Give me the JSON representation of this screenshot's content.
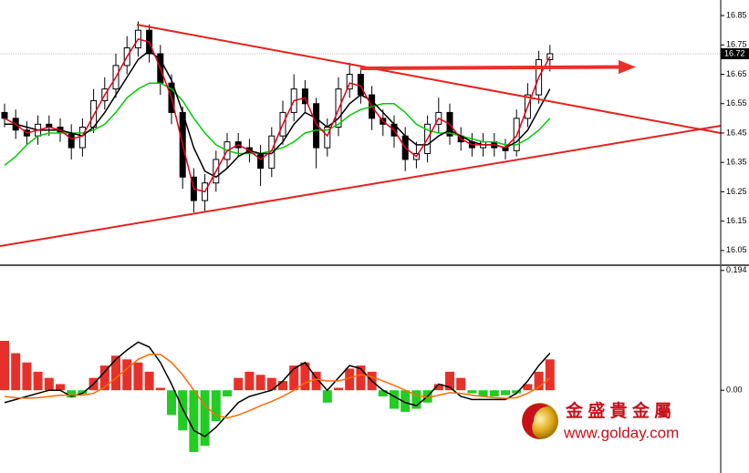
{
  "chart_data": [
    {
      "type": "candlestick",
      "open": [
        16.52,
        16.5,
        16.46,
        16.44,
        16.48,
        16.47,
        16.45,
        16.4,
        16.47,
        16.56,
        16.6,
        16.68,
        16.74,
        16.8,
        16.72,
        16.62,
        16.52,
        16.3,
        16.22,
        16.28,
        16.36,
        16.42,
        16.4,
        16.38,
        16.33,
        16.44,
        16.52,
        16.6,
        16.55,
        16.4,
        16.47,
        16.6,
        16.65,
        16.58,
        16.5,
        16.48,
        16.44,
        16.36,
        16.38,
        16.48,
        16.52,
        16.44,
        16.42,
        16.4,
        16.42,
        16.4,
        16.39,
        16.5,
        16.58,
        16.7
      ],
      "high": [
        16.55,
        16.53,
        16.49,
        16.51,
        16.51,
        16.5,
        16.48,
        16.5,
        16.6,
        16.64,
        16.72,
        16.78,
        16.83,
        16.82,
        16.75,
        16.65,
        16.54,
        16.33,
        16.31,
        16.39,
        16.45,
        16.45,
        16.43,
        16.41,
        16.47,
        16.56,
        16.65,
        16.63,
        16.57,
        16.5,
        16.64,
        16.69,
        16.68,
        16.61,
        16.53,
        16.51,
        16.47,
        16.42,
        16.51,
        16.57,
        16.55,
        16.47,
        16.45,
        16.45,
        16.45,
        16.43,
        16.53,
        16.62,
        16.73,
        16.75
      ],
      "low": [
        16.47,
        16.43,
        16.41,
        16.41,
        16.44,
        16.42,
        16.36,
        16.37,
        16.45,
        16.53,
        16.57,
        16.65,
        16.71,
        16.69,
        16.58,
        16.48,
        16.26,
        16.18,
        16.18,
        16.25,
        16.33,
        16.37,
        16.35,
        16.27,
        16.3,
        16.41,
        16.49,
        16.52,
        16.33,
        16.37,
        16.44,
        16.57,
        16.55,
        16.46,
        16.44,
        16.4,
        16.32,
        16.33,
        16.35,
        16.45,
        16.41,
        16.39,
        16.37,
        16.37,
        16.37,
        16.36,
        16.37,
        16.47,
        16.55,
        16.66
      ],
      "close": [
        16.5,
        16.46,
        16.44,
        16.48,
        16.47,
        16.45,
        16.4,
        16.47,
        16.56,
        16.6,
        16.68,
        16.74,
        16.8,
        16.72,
        16.62,
        16.52,
        16.3,
        16.22,
        16.28,
        16.36,
        16.42,
        16.4,
        16.38,
        16.33,
        16.44,
        16.52,
        16.6,
        16.55,
        16.4,
        16.47,
        16.6,
        16.65,
        16.58,
        16.5,
        16.48,
        16.44,
        16.36,
        16.38,
        16.48,
        16.52,
        16.44,
        16.42,
        16.4,
        16.42,
        16.4,
        16.39,
        16.5,
        16.58,
        16.7,
        16.72
      ],
      "series": [
        {
          "color": "#00cc00",
          "values": [
            16.34,
            16.37,
            16.41,
            16.44,
            16.45,
            16.45,
            16.45,
            16.45,
            16.46,
            16.48,
            16.52,
            16.57,
            16.6,
            16.62,
            16.62,
            16.6,
            16.56,
            16.5,
            16.45,
            16.41,
            16.39,
            16.38,
            16.38,
            16.38,
            16.39,
            16.4,
            16.42,
            16.45,
            16.46,
            16.46,
            16.48,
            16.51,
            16.53,
            16.54,
            16.55,
            16.55,
            16.52,
            16.48,
            16.46,
            16.45,
            16.45,
            16.44,
            16.43,
            16.42,
            16.42,
            16.41,
            16.41,
            16.43,
            16.46,
            16.5
          ]
        },
        {
          "color": "#000000",
          "values": [
            16.48,
            16.48,
            16.47,
            16.46,
            16.46,
            16.46,
            16.45,
            16.44,
            16.47,
            16.52,
            16.58,
            16.64,
            16.7,
            16.73,
            16.7,
            16.63,
            16.52,
            16.4,
            16.32,
            16.3,
            16.33,
            16.37,
            16.39,
            16.38,
            16.38,
            16.42,
            16.48,
            16.52,
            16.5,
            16.47,
            16.5,
            16.55,
            16.58,
            16.56,
            16.52,
            16.48,
            16.44,
            16.41,
            16.41,
            16.44,
            16.46,
            16.44,
            16.42,
            16.41,
            16.41,
            16.4,
            16.42,
            16.46,
            16.53,
            16.6
          ]
        },
        {
          "color": "#e0001b",
          "values": [
            16.5,
            16.48,
            16.45,
            16.46,
            16.47,
            16.46,
            16.43,
            16.44,
            16.51,
            16.58,
            16.64,
            16.71,
            16.77,
            16.76,
            16.67,
            16.57,
            16.41,
            16.26,
            16.25,
            16.32,
            16.39,
            16.41,
            16.39,
            16.36,
            16.39,
            16.48,
            16.56,
            16.57,
            16.48,
            16.44,
            16.53,
            16.62,
            16.61,
            16.54,
            16.49,
            16.46,
            16.4,
            16.37,
            16.43,
            16.5,
            16.48,
            16.43,
            16.41,
            16.41,
            16.41,
            16.4,
            16.44,
            16.54,
            16.64,
            16.71
          ]
        }
      ],
      "ylim": [
        16.003,
        16.903
      ],
      "yticks": [
        16.85,
        16.75,
        16.65,
        16.55,
        16.45,
        16.35,
        16.25,
        16.15,
        16.05
      ]
    },
    {
      "type": "bar",
      "values": [
        0.08,
        0.06,
        0.045,
        0.03,
        0.02,
        0.01,
        -0.012,
        -0.006,
        0.02,
        0.04,
        0.056,
        0.05,
        0.045,
        0.03,
        0.004,
        -0.04,
        -0.065,
        -0.1,
        -0.09,
        -0.05,
        -0.01,
        0.02,
        0.03,
        0.025,
        0.02,
        0.015,
        0.04,
        0.045,
        0.03,
        -0.02,
        0.004,
        0.035,
        0.04,
        0.03,
        -0.01,
        -0.03,
        -0.035,
        -0.03,
        -0.02,
        0.01,
        0.03,
        0.02,
        -0.005,
        -0.01,
        -0.01,
        -0.008,
        -0.005,
        0.01,
        0.03,
        0.05
      ],
      "positive_color": "#e8302a",
      "negative_color": "#22cc22",
      "series": [
        {
          "color": "#000000",
          "values": [
            -0.02,
            -0.015,
            -0.01,
            -0.005,
            0.0,
            0.0,
            -0.01,
            -0.005,
            0.01,
            0.03,
            0.05,
            0.065,
            0.078,
            0.07,
            0.045,
            0.01,
            -0.03,
            -0.065,
            -0.075,
            -0.06,
            -0.04,
            -0.02,
            -0.01,
            -0.005,
            0.0,
            0.015,
            0.035,
            0.045,
            0.02,
            0.0,
            0.02,
            0.04,
            0.035,
            0.015,
            0.0,
            -0.01,
            -0.02,
            -0.025,
            -0.01,
            0.01,
            0.005,
            -0.01,
            -0.015,
            -0.015,
            -0.015,
            -0.015,
            -0.005,
            0.015,
            0.04,
            0.06
          ]
        },
        {
          "color": "#ff6a00",
          "values": [
            -0.01,
            -0.012,
            -0.013,
            -0.012,
            -0.01,
            -0.008,
            -0.008,
            -0.008,
            -0.005,
            0.005,
            0.02,
            0.035,
            0.05,
            0.058,
            0.058,
            0.045,
            0.025,
            0.0,
            -0.025,
            -0.04,
            -0.045,
            -0.04,
            -0.033,
            -0.025,
            -0.018,
            -0.01,
            0.0,
            0.012,
            0.018,
            0.015,
            0.015,
            0.02,
            0.025,
            0.022,
            0.015,
            0.008,
            0.0,
            -0.008,
            -0.012,
            -0.008,
            -0.004,
            -0.005,
            -0.008,
            -0.01,
            -0.012,
            -0.013,
            -0.012,
            -0.005,
            0.005,
            0.02
          ]
        }
      ],
      "ylim": [
        -0.134,
        0.201
      ],
      "yticks": [
        0.194,
        {
          "value": 0,
          "label": "0.00"
        }
      ]
    }
  ],
  "logo": {
    "title": "金 盛 貴 金 屬",
    "url": "www.golday.com"
  }
}
